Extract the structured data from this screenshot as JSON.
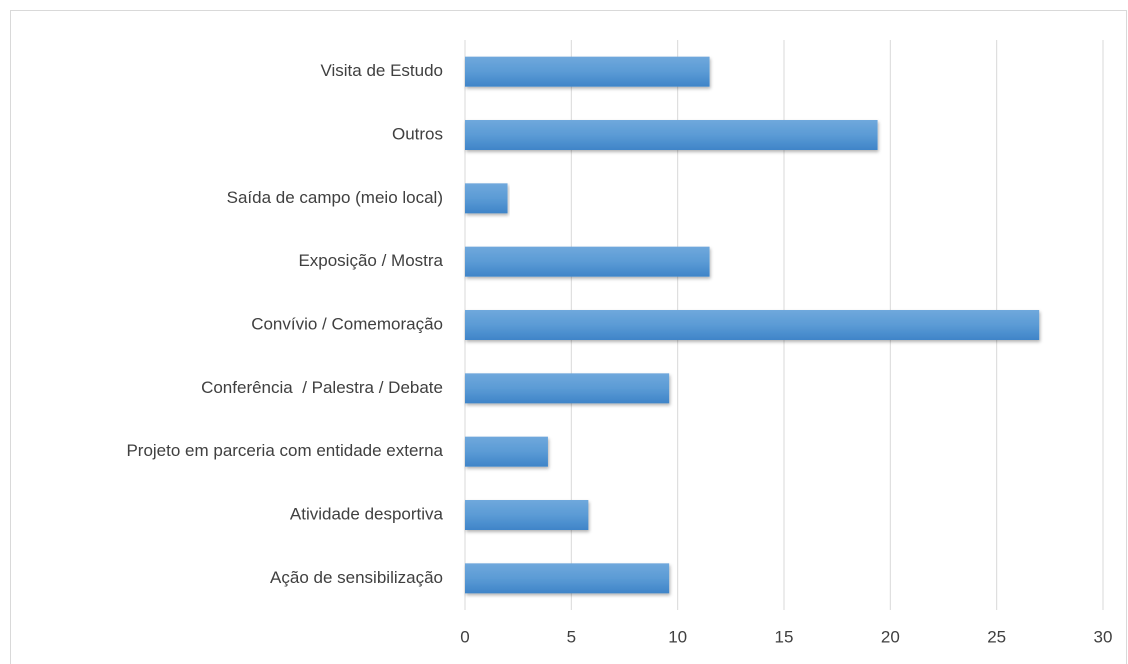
{
  "chart_data": {
    "type": "barh",
    "categories": [
      "Visita de Estudo",
      "Outros",
      "Saída de campo (meio local)",
      "Exposição / Mostra",
      "Convívio / Comemoração",
      "Conferência  / Palestra / Debate",
      "Projeto em parceria com entidade externa",
      "Atividade desportiva",
      "Ação de sensibilização"
    ],
    "values": [
      11.5,
      19.4,
      2,
      11.5,
      27,
      9.6,
      3.9,
      5.8,
      9.6
    ],
    "color": "#5b9bd5",
    "xlim": [
      0,
      30
    ],
    "xticks": [
      0,
      5,
      10,
      15,
      20,
      25,
      30
    ],
    "grid": true
  }
}
